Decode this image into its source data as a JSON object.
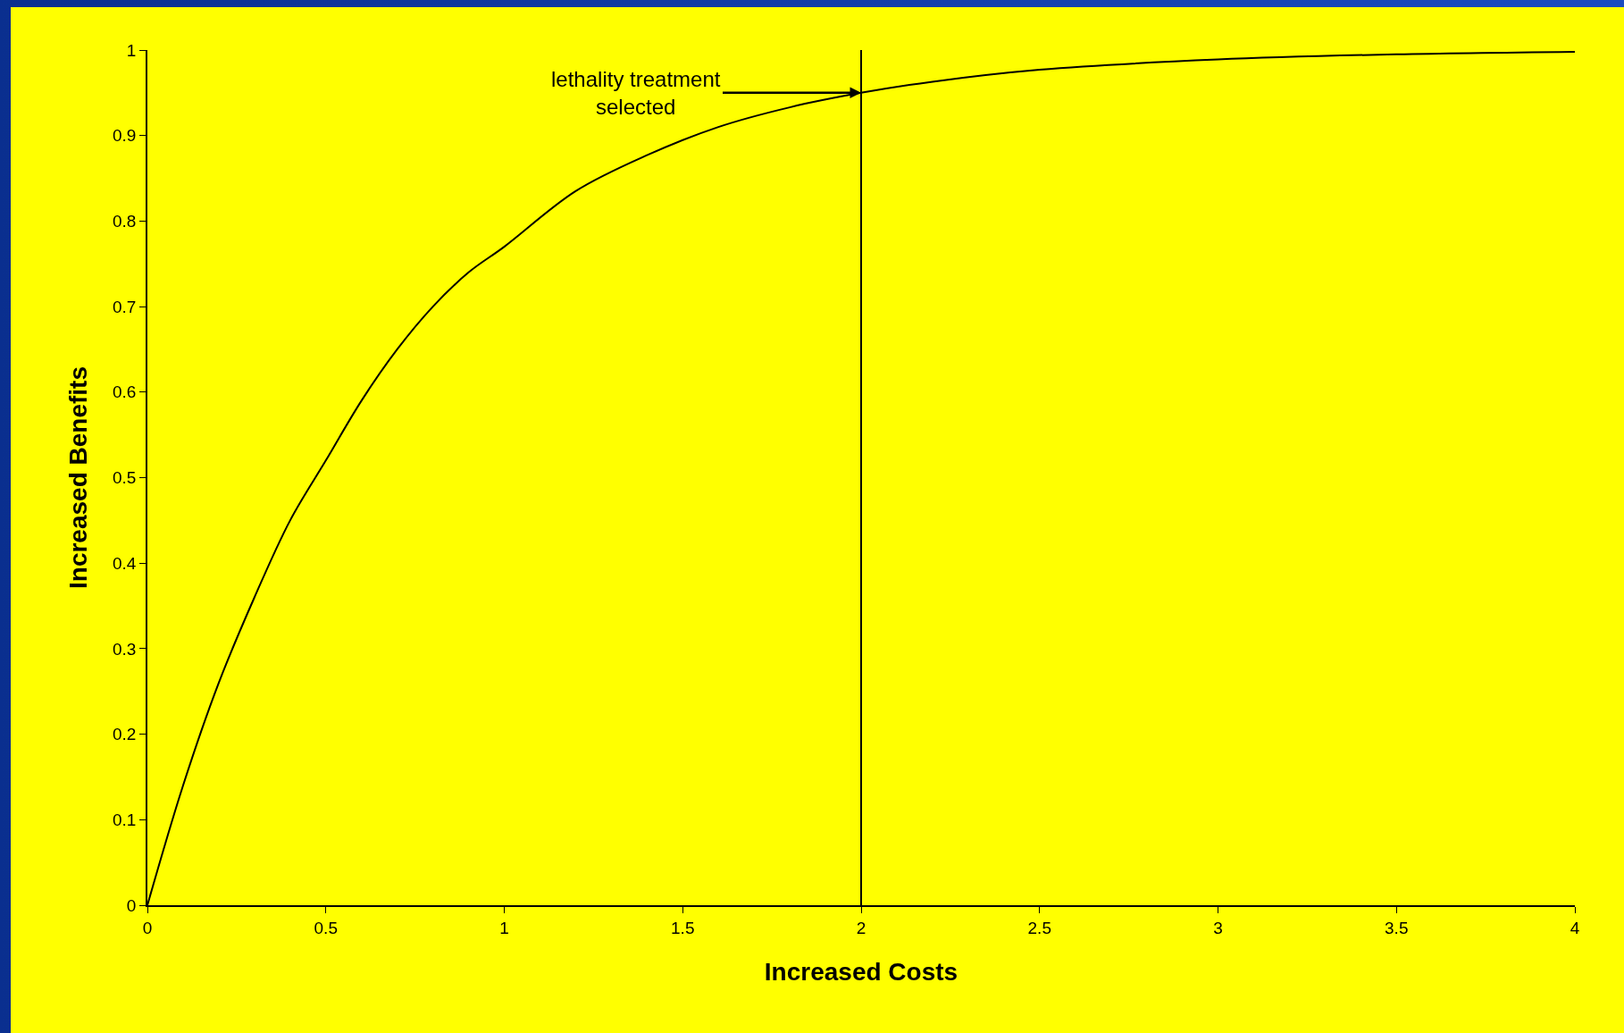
{
  "chart_data": {
    "type": "line",
    "xlabel": "Increased Costs",
    "ylabel": "Increased Benefits",
    "x": [
      0,
      0.1,
      0.2,
      0.3,
      0.4,
      0.5,
      0.6,
      0.7,
      0.8,
      0.9,
      1.0,
      1.2,
      1.4,
      1.6,
      1.8,
      2.0,
      2.2,
      2.5,
      3.0,
      3.5,
      4.0
    ],
    "series": [
      {
        "color": "#000000",
        "values": [
          0,
          0.14,
          0.26,
          0.36,
          0.45,
          0.52,
          0.59,
          0.65,
          0.7,
          0.74,
          0.77,
          0.835,
          0.877,
          0.91,
          0.933,
          0.95,
          0.963,
          0.977,
          0.989,
          0.995,
          0.998
        ]
      }
    ],
    "xlim": [
      0,
      4
    ],
    "xticks": [
      0,
      0.5,
      1,
      1.5,
      2,
      2.5,
      3,
      3.5,
      4
    ],
    "ylim": [
      0,
      1
    ],
    "yticks": [
      0,
      0.1,
      0.2,
      0.3,
      0.4,
      0.5,
      0.6,
      0.7,
      0.8,
      0.9,
      1
    ],
    "grid": false,
    "marker": "none",
    "line_style": "solid",
    "ref_lines": [
      {
        "axis": "x",
        "value": 2,
        "label": null,
        "color": "#000000"
      }
    ],
    "annotations": [
      {
        "text": "lethality treatment\nselected",
        "x": 2,
        "y": 0.95
      }
    ]
  }
}
